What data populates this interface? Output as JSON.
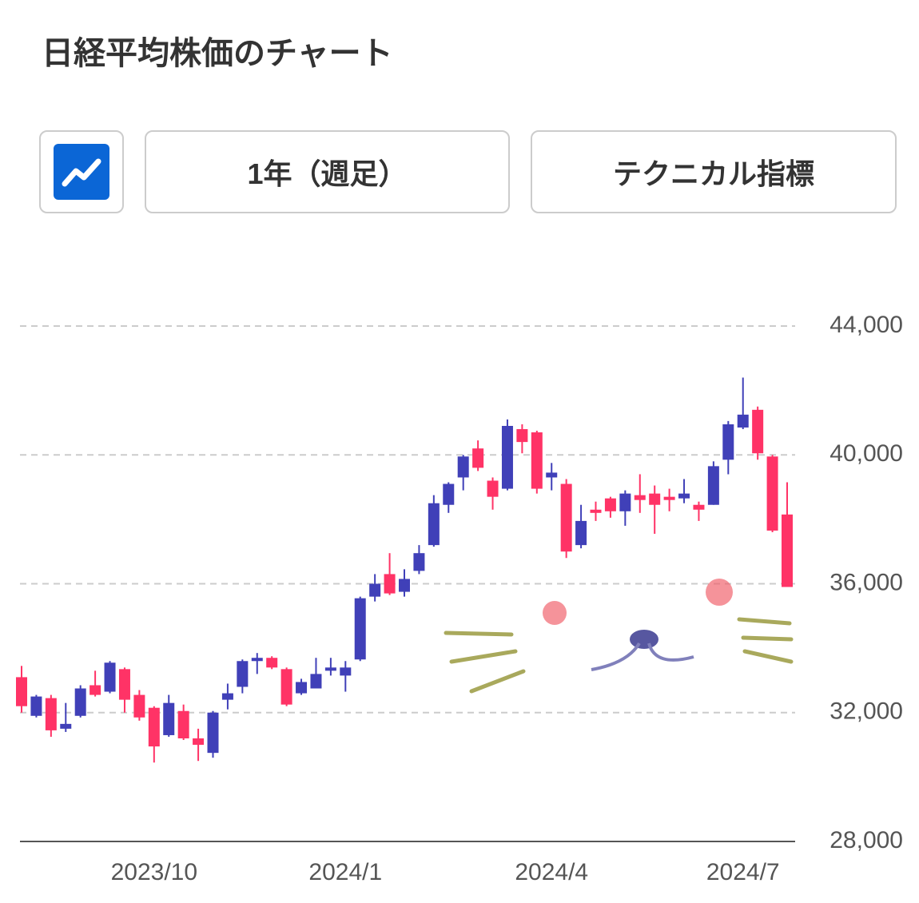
{
  "header": {
    "title": "日経平均株価のチャート"
  },
  "controls": {
    "period": "1年（週足）",
    "technical": "テクニカル指標"
  },
  "chart_data": {
    "type": "candlestick",
    "categories": [
      null,
      null,
      null,
      null,
      null,
      null,
      null,
      null,
      null,
      "2023/10",
      null,
      null,
      null,
      null,
      null,
      null,
      null,
      null,
      null,
      null,
      null,
      null,
      "2024/1",
      null,
      null,
      null,
      null,
      null,
      null,
      null,
      null,
      null,
      null,
      null,
      null,
      null,
      "2024/4",
      null,
      null,
      null,
      null,
      null,
      null,
      null,
      null,
      null,
      null,
      null,
      null,
      "2024/7",
      null,
      null,
      null
    ],
    "open": [
      33100,
      31900,
      32450,
      31500,
      31900,
      32850,
      32650,
      33350,
      32550,
      32150,
      31300,
      32050,
      31200,
      30750,
      32400,
      32800,
      33600,
      33700,
      33350,
      32600,
      32750,
      33300,
      33150,
      33650,
      35600,
      36300,
      35750,
      36400,
      37200,
      38450,
      39300,
      40200,
      39200,
      38950,
      40800,
      40700,
      39300,
      39100,
      37200,
      38300,
      38650,
      38250,
      38750,
      38800,
      38700,
      38650,
      38450,
      38450,
      39850,
      40850,
      41400,
      39950,
      38150
    ],
    "high": [
      33450,
      32550,
      32550,
      32300,
      32850,
      33300,
      33600,
      33400,
      32700,
      32200,
      32550,
      32250,
      31500,
      32050,
      32900,
      33650,
      33850,
      33750,
      33400,
      33050,
      33700,
      33700,
      33600,
      35600,
      36300,
      36950,
      36450,
      37200,
      38750,
      39150,
      40000,
      40450,
      39300,
      41100,
      40950,
      40750,
      39750,
      39250,
      38450,
      38550,
      38700,
      38900,
      39400,
      39050,
      38950,
      39250,
      38550,
      39800,
      41050,
      42400,
      41500,
      40000,
      39150
    ],
    "low": [
      32000,
      31850,
      31250,
      31400,
      31850,
      32500,
      32600,
      32000,
      31750,
      30450,
      31250,
      31150,
      30500,
      30600,
      32100,
      32600,
      33200,
      33350,
      32200,
      32550,
      32750,
      33150,
      32650,
      33600,
      35450,
      35650,
      35600,
      36300,
      37150,
      38200,
      38900,
      39500,
      38300,
      38900,
      40050,
      38800,
      38900,
      36800,
      37100,
      37950,
      38050,
      37800,
      38200,
      37550,
      38250,
      38500,
      37950,
      38450,
      39400,
      40800,
      39850,
      37600,
      35900
    ],
    "close": [
      32200,
      32500,
      31450,
      31650,
      32750,
      32550,
      33550,
      32400,
      31850,
      30950,
      32300,
      31200,
      31000,
      32000,
      32600,
      33600,
      33700,
      33400,
      32250,
      32950,
      33200,
      33400,
      33400,
      35550,
      36000,
      35700,
      36150,
      36950,
      38500,
      39100,
      39950,
      39600,
      38700,
      40900,
      40400,
      38950,
      39450,
      37000,
      37950,
      38200,
      38250,
      38800,
      38600,
      38450,
      38600,
      38800,
      38300,
      39650,
      40950,
      41250,
      40050,
      37650,
      35900
    ],
    "up_color": "#4040b8",
    "down_color": "#ff3366",
    "ylim": [
      28000,
      44000
    ],
    "yticks": [
      {
        "value": 28000,
        "label": "28,000"
      },
      {
        "value": 32000,
        "label": "32,000"
      },
      {
        "value": 36000,
        "label": "36,000"
      },
      {
        "value": 40000,
        "label": "40,000"
      },
      {
        "value": 44000,
        "label": "44,000"
      }
    ],
    "grid": true
  }
}
